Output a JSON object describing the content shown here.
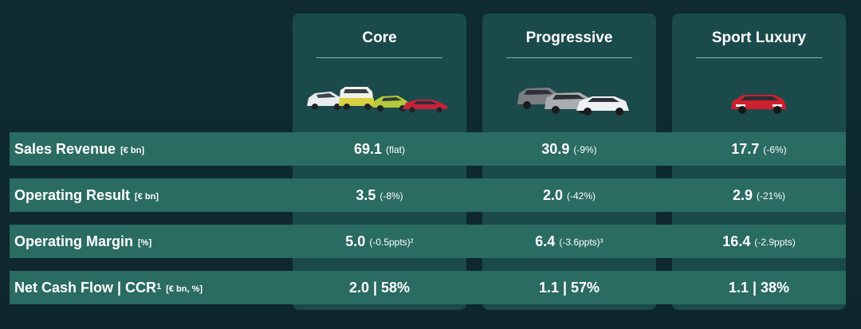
{
  "columns": [
    {
      "title": "Core"
    },
    {
      "title": "Progressive"
    },
    {
      "title": "Sport Luxury"
    }
  ],
  "rows": [
    {
      "label": "Sales Revenue",
      "unit": "[€ bn]",
      "cells": [
        {
          "main": "69.1",
          "delta": "(flat)"
        },
        {
          "main": "30.9",
          "delta": "(-9%)"
        },
        {
          "main": "17.7",
          "delta": "(-6%)"
        }
      ]
    },
    {
      "label": "Operating Result",
      "unit": "[€ bn]",
      "cells": [
        {
          "main": "3.5",
          "delta": "(-8%)"
        },
        {
          "main": "2.0",
          "delta": "(-42%)"
        },
        {
          "main": "2.9",
          "delta": "(-21%)"
        }
      ]
    },
    {
      "label": "Operating Margin",
      "unit": "[%]",
      "cells": [
        {
          "main": "5.0",
          "delta": "(-0.5ppts)²"
        },
        {
          "main": "6.4",
          "delta": "(-3.6ppts)³"
        },
        {
          "main": "16.4",
          "delta": "(-2.9ppts)"
        }
      ]
    },
    {
      "label": "Net Cash Flow | CCR",
      "sup": "1",
      "unit": "[€ bn, %]",
      "cells": [
        {
          "main": "2.0 | 58%",
          "delta": ""
        },
        {
          "main": "1.1 | 57%",
          "delta": ""
        },
        {
          "main": "1.1 | 38%",
          "delta": ""
        }
      ]
    }
  ],
  "colors": {
    "background": "#0f2a30",
    "column": "#1b4a4b",
    "row_band": "#2a6b62",
    "text": "#ffffff"
  }
}
